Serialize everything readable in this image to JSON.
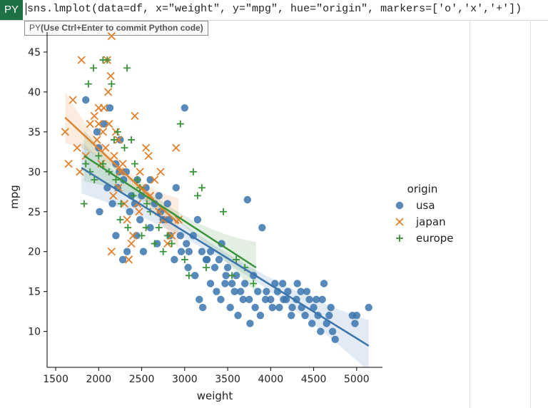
{
  "formula": {
    "badge": "PY",
    "code": "sns.lmplot(data=df, x=\"weight\", y=\"mpg\", hue=\"origin\", markers=['o','x','+'])",
    "tooltip_prefix": "PY",
    "tooltip_text": "(Use Ctrl+Enter to commit Python code)"
  },
  "chart_data": {
    "type": "scatter",
    "xlabel": "weight",
    "ylabel": "mpg",
    "xlim": [
      1400,
      5300
    ],
    "ylim": [
      5.5,
      47.5
    ],
    "xticks": [
      1500,
      2000,
      2500,
      3000,
      3500,
      4000,
      4500,
      5000
    ],
    "yticks": [
      10,
      15,
      20,
      25,
      30,
      35,
      40,
      45
    ],
    "legend_title": "origin",
    "legend_position": "right",
    "series": [
      {
        "name": "usa",
        "marker": "o",
        "color": "#3a75ae",
        "regression": {
          "x": [
            1800,
            5140
          ],
          "y": [
            30.5,
            8.2
          ]
        },
        "points": [
          [
            1850,
            39
          ],
          [
            2000,
            33
          ],
          [
            2130,
            38
          ],
          [
            2200,
            31
          ],
          [
            2220,
            28
          ],
          [
            2250,
            34
          ],
          [
            2290,
            29
          ],
          [
            2320,
            30
          ],
          [
            2380,
            27
          ],
          [
            2420,
            26
          ],
          [
            2450,
            29
          ],
          [
            2480,
            24
          ],
          [
            2500,
            27
          ],
          [
            2550,
            28
          ],
          [
            2600,
            29
          ],
          [
            2650,
            26
          ],
          [
            2700,
            27
          ],
          [
            2720,
            25
          ],
          [
            2800,
            26
          ],
          [
            2820,
            24
          ],
          [
            2900,
            28
          ],
          [
            2950,
            22
          ],
          [
            3000,
            38
          ],
          [
            3020,
            21
          ],
          [
            3050,
            20
          ],
          [
            3100,
            22
          ],
          [
            3150,
            24
          ],
          [
            3200,
            20
          ],
          [
            3250,
            19
          ],
          [
            3300,
            20
          ],
          [
            3350,
            18
          ],
          [
            3400,
            19
          ],
          [
            3430,
            21
          ],
          [
            3480,
            17
          ],
          [
            3500,
            18
          ],
          [
            3550,
            16
          ],
          [
            3600,
            17
          ],
          [
            3650,
            15
          ],
          [
            3700,
            16
          ],
          [
            3730,
            26.5
          ],
          [
            3750,
            14
          ],
          [
            3800,
            17
          ],
          [
            3850,
            15
          ],
          [
            3900,
            23
          ],
          [
            3950,
            15
          ],
          [
            4000,
            14
          ],
          [
            4050,
            16
          ],
          [
            4100,
            13
          ],
          [
            4150,
            14
          ],
          [
            4200,
            15
          ],
          [
            4250,
            13
          ],
          [
            4300,
            14
          ],
          [
            4350,
            15
          ],
          [
            4400,
            12
          ],
          [
            4450,
            14
          ],
          [
            4500,
            13
          ],
          [
            4550,
            12
          ],
          [
            4600,
            14
          ],
          [
            4650,
            11
          ],
          [
            4700,
            13
          ],
          [
            4750,
            9
          ],
          [
            4950,
            12
          ],
          [
            5000,
            12
          ],
          [
            5140,
            13
          ],
          [
            2010,
            25
          ],
          [
            2100,
            28
          ],
          [
            2200,
            22
          ],
          [
            2280,
            19
          ],
          [
            2330,
            20
          ],
          [
            2440,
            22
          ],
          [
            2520,
            20
          ],
          [
            2600,
            23
          ],
          [
            2680,
            21
          ],
          [
            2750,
            24
          ],
          [
            2830,
            22
          ],
          [
            2880,
            19
          ],
          [
            2960,
            20
          ],
          [
            3040,
            18
          ],
          [
            3120,
            17
          ],
          [
            3170,
            14
          ],
          [
            3210,
            13
          ],
          [
            3260,
            19
          ],
          [
            3300,
            16
          ],
          [
            3370,
            15
          ],
          [
            3420,
            14
          ],
          [
            3470,
            16
          ],
          [
            3530,
            13
          ],
          [
            3580,
            15
          ],
          [
            3620,
            12
          ],
          [
            3680,
            14
          ],
          [
            3760,
            11
          ],
          [
            3820,
            13
          ],
          [
            3880,
            12
          ],
          [
            3940,
            14
          ],
          [
            4020,
            13
          ],
          [
            4080,
            15
          ],
          [
            4140,
            16
          ],
          [
            4180,
            14
          ],
          [
            4240,
            12
          ],
          [
            4310,
            16
          ],
          [
            4360,
            13
          ],
          [
            4420,
            15
          ],
          [
            4480,
            11
          ],
          [
            4530,
            14
          ],
          [
            4580,
            10
          ],
          [
            4620,
            16
          ],
          [
            4680,
            12
          ],
          [
            4720,
            10
          ],
          [
            4980,
            11
          ],
          [
            1980,
            35
          ],
          [
            2060,
            36
          ],
          [
            2160,
            26
          ],
          [
            2240,
            30
          ],
          [
            2360,
            25
          ]
        ]
      },
      {
        "name": "japan",
        "marker": "x",
        "color": "#e1812c",
        "regression": {
          "x": [
            1610,
            2930
          ],
          "y": [
            36.8,
            23.5
          ]
        },
        "points": [
          [
            1610,
            35
          ],
          [
            1650,
            31
          ],
          [
            1700,
            39
          ],
          [
            1750,
            33
          ],
          [
            1780,
            30
          ],
          [
            1800,
            44
          ],
          [
            1850,
            32
          ],
          [
            1900,
            36
          ],
          [
            1950,
            37
          ],
          [
            1980,
            34
          ],
          [
            2000,
            38
          ],
          [
            2030,
            31
          ],
          [
            2050,
            35
          ],
          [
            2080,
            33
          ],
          [
            2100,
            44
          ],
          [
            2120,
            36
          ],
          [
            2150,
            47
          ],
          [
            2180,
            32
          ],
          [
            2200,
            35
          ],
          [
            2230,
            28
          ],
          [
            2250,
            30
          ],
          [
            2280,
            31
          ],
          [
            2300,
            26
          ],
          [
            2330,
            24
          ],
          [
            2350,
            19
          ],
          [
            2400,
            22
          ],
          [
            2420,
            37
          ],
          [
            2450,
            26
          ],
          [
            2480,
            30
          ],
          [
            2510,
            28
          ],
          [
            2550,
            33
          ],
          [
            2600,
            27
          ],
          [
            2650,
            29
          ],
          [
            2700,
            25
          ],
          [
            2750,
            24
          ],
          [
            2800,
            21
          ],
          [
            2850,
            22
          ],
          [
            2900,
            33
          ],
          [
            2930,
            24
          ],
          [
            2150,
            20
          ],
          [
            2170,
            27
          ],
          [
            2060,
            38
          ],
          [
            2110,
            40
          ],
          [
            2140,
            42
          ],
          [
            2000,
            36
          ],
          [
            2230,
            34
          ],
          [
            2380,
            21
          ],
          [
            2470,
            25
          ],
          [
            2580,
            32
          ],
          [
            2720,
            30
          ]
        ]
      },
      {
        "name": "europe",
        "marker": "+",
        "color": "#3a923a",
        "regression": {
          "x": [
            1830,
            3830
          ],
          "y": [
            32.0,
            18.0
          ]
        },
        "points": [
          [
            1830,
            26
          ],
          [
            1850,
            31
          ],
          [
            1900,
            30
          ],
          [
            1950,
            29
          ],
          [
            2000,
            32
          ],
          [
            2050,
            31
          ],
          [
            2100,
            44
          ],
          [
            2120,
            30
          ],
          [
            2150,
            41
          ],
          [
            2200,
            29
          ],
          [
            2220,
            35
          ],
          [
            2250,
            24
          ],
          [
            2300,
            33
          ],
          [
            2330,
            43
          ],
          [
            2380,
            34
          ],
          [
            2400,
            27
          ],
          [
            2450,
            29
          ],
          [
            2500,
            22
          ],
          [
            2550,
            23
          ],
          [
            2600,
            25
          ],
          [
            2650,
            21
          ],
          [
            2700,
            23
          ],
          [
            2750,
            20
          ],
          [
            2800,
            22
          ],
          [
            2850,
            21
          ],
          [
            2950,
            36
          ],
          [
            3000,
            19
          ],
          [
            3100,
            30
          ],
          [
            3150,
            27
          ],
          [
            3200,
            28
          ],
          [
            3250,
            18
          ],
          [
            3450,
            25
          ],
          [
            3550,
            17
          ],
          [
            3600,
            19
          ],
          [
            3700,
            18
          ],
          [
            3800,
            16
          ],
          [
            1880,
            41
          ],
          [
            1940,
            43
          ],
          [
            2050,
            44
          ],
          [
            2180,
            34
          ],
          [
            2260,
            26
          ],
          [
            2340,
            23
          ],
          [
            2420,
            31
          ],
          [
            2480,
            28
          ],
          [
            2560,
            26
          ],
          [
            3050,
            17
          ]
        ]
      }
    ]
  }
}
